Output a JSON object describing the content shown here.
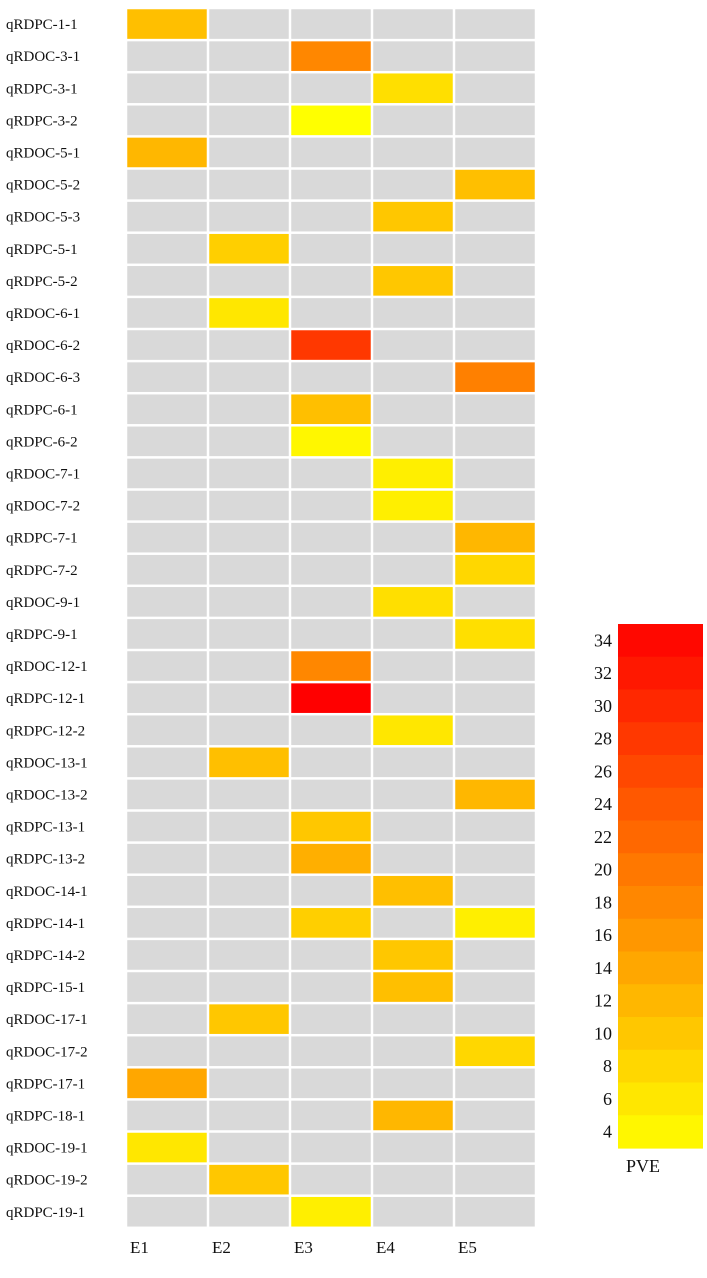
{
  "chart_data": {
    "type": "heatmap",
    "title": "",
    "columns": [
      "E1",
      "E2",
      "E3",
      "E4",
      "E5"
    ],
    "rows": [
      "qRDPC-1-1",
      "qRDOC-3-1",
      "qRDPC-3-1",
      "qRDPC-3-2",
      "qRDOC-5-1",
      "qRDOC-5-2",
      "qRDOC-5-3",
      "qRDPC-5-1",
      "qRDPC-5-2",
      "qRDOC-6-1",
      "qRDOC-6-2",
      "qRDOC-6-3",
      "qRDPC-6-1",
      "qRDPC-6-2",
      "qRDOC-7-1",
      "qRDOC-7-2",
      "qRDPC-7-1",
      "qRDPC-7-2",
      "qRDOC-9-1",
      "qRDPC-9-1",
      "qRDOC-12-1",
      "qRDPC-12-1",
      "qRDPC-12-2",
      "qRDOC-13-1",
      "qRDOC-13-2",
      "qRDPC-13-1",
      "qRDPC-13-2",
      "qRDOC-14-1",
      "qRDPC-14-1",
      "qRDPC-14-2",
      "qRDPC-15-1",
      "qRDOC-17-1",
      "qRDOC-17-2",
      "qRDPC-17-1",
      "qRDPC-18-1",
      "qRDOC-19-1",
      "qRDOC-19-2",
      "qRDPC-19-1"
    ],
    "values": [
      [
        11,
        null,
        null,
        null,
        null
      ],
      [
        null,
        null,
        18,
        null,
        null
      ],
      [
        null,
        null,
        null,
        7,
        null
      ],
      [
        null,
        null,
        3,
        null,
        null
      ],
      [
        12,
        null,
        null,
        null,
        null
      ],
      [
        null,
        null,
        null,
        null,
        11
      ],
      [
        null,
        null,
        null,
        10,
        null
      ],
      [
        null,
        9,
        null,
        null,
        null
      ],
      [
        null,
        null,
        null,
        10,
        null
      ],
      [
        null,
        6,
        null,
        null,
        null
      ],
      [
        null,
        null,
        28,
        null,
        null
      ],
      [
        null,
        null,
        null,
        null,
        19
      ],
      [
        null,
        null,
        11,
        null,
        null
      ],
      [
        null,
        null,
        4,
        null,
        null
      ],
      [
        null,
        null,
        null,
        5,
        null
      ],
      [
        null,
        null,
        null,
        5,
        null
      ],
      [
        null,
        null,
        null,
        null,
        12
      ],
      [
        null,
        null,
        null,
        null,
        8
      ],
      [
        null,
        null,
        null,
        7,
        null
      ],
      [
        null,
        null,
        null,
        null,
        7
      ],
      [
        null,
        null,
        18,
        null,
        null
      ],
      [
        null,
        null,
        35,
        null,
        null
      ],
      [
        null,
        null,
        null,
        6,
        null
      ],
      [
        null,
        11,
        null,
        null,
        null
      ],
      [
        null,
        null,
        null,
        null,
        12
      ],
      [
        null,
        null,
        10,
        null,
        null
      ],
      [
        null,
        null,
        13,
        null,
        null
      ],
      [
        null,
        null,
        null,
        11,
        null
      ],
      [
        null,
        null,
        9,
        null,
        5
      ],
      [
        null,
        null,
        null,
        10,
        null
      ],
      [
        null,
        null,
        null,
        11,
        null
      ],
      [
        null,
        10,
        null,
        null,
        null
      ],
      [
        null,
        null,
        null,
        null,
        8
      ],
      [
        14,
        null,
        null,
        null,
        null
      ],
      [
        null,
        null,
        null,
        12,
        null
      ],
      [
        6,
        null,
        null,
        null,
        null
      ],
      [
        null,
        10,
        null,
        null,
        null
      ],
      [
        null,
        null,
        5,
        null,
        null
      ]
    ],
    "colorbar": {
      "label": "PVE",
      "min": 3,
      "max": 35,
      "ticks": [
        4,
        6,
        8,
        10,
        12,
        14,
        16,
        18,
        20,
        22,
        24,
        26,
        28,
        30,
        32,
        34
      ]
    },
    "empty_color": "#d9d9d9",
    "low_color": "#ffff00",
    "high_color": "#ff0000",
    "legend_position": "right"
  }
}
